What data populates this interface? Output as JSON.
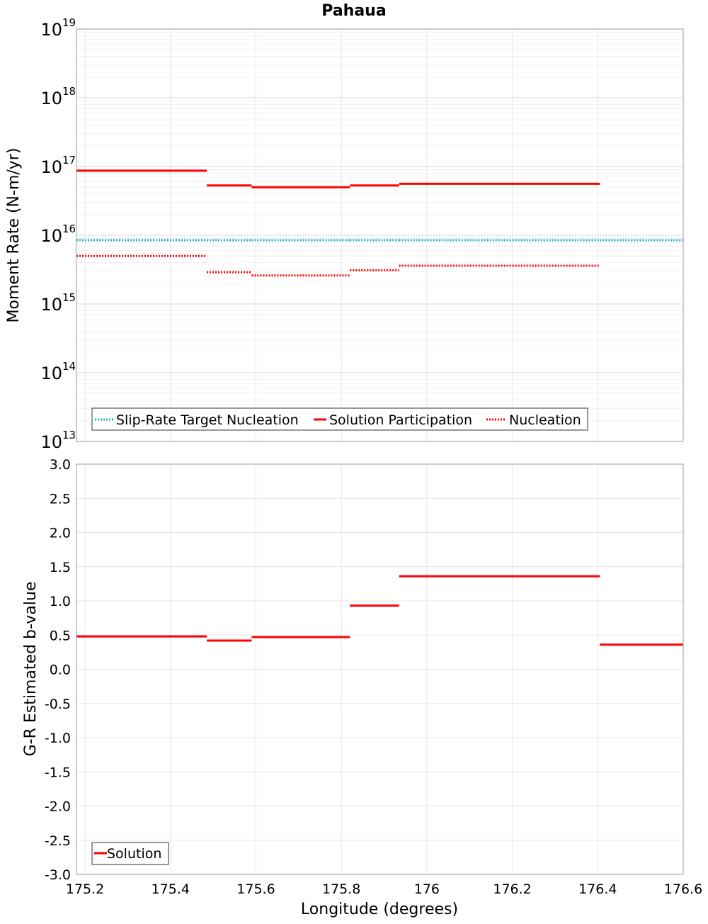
{
  "title": "Pahaua",
  "x_axis": {
    "label": "Longitude (degrees)",
    "range": [
      175.18,
      176.6
    ],
    "tick_labels": [
      "175.2",
      "175.4",
      "175.6",
      "175.8",
      "176",
      "176.2",
      "176.4",
      "176.6"
    ]
  },
  "colors": {
    "target": "#1bb5c4",
    "solution": "#ff0000",
    "grid": "#e6e6e6",
    "minor_grid": "#f0f0f0",
    "frame": "#999999"
  },
  "chart_data": [
    {
      "type": "line",
      "panel": "top",
      "ylabel": "Moment Rate (N-m/yr)",
      "y_scale": "log",
      "ylim": [
        10000000000000.0,
        1e+19
      ],
      "y_tick_labels": [
        {
          "base": "10",
          "exp": "13"
        },
        {
          "base": "10",
          "exp": "14"
        },
        {
          "base": "10",
          "exp": "15"
        },
        {
          "base": "10",
          "exp": "16"
        },
        {
          "base": "10",
          "exp": "17"
        },
        {
          "base": "10",
          "exp": "18"
        },
        {
          "base": "10",
          "exp": "19"
        }
      ],
      "legend_position": "bottom-left",
      "series": [
        {
          "name": "Slip-Rate Target Nucleation",
          "style": "dotted",
          "color": "#1bb5c4",
          "segments": [
            {
              "x": [
                175.18,
                175.485
              ],
              "y": 8500000000000000.0
            },
            {
              "x": [
                175.485,
                175.59
              ],
              "y": 8500000000000000.0
            },
            {
              "x": [
                175.59,
                175.82
              ],
              "y": 8500000000000000.0
            },
            {
              "x": [
                175.82,
                175.935
              ],
              "y": 8500000000000000.0
            },
            {
              "x": [
                175.935,
                176.405
              ],
              "y": 8500000000000000.0
            },
            {
              "x": [
                176.405,
                176.6
              ],
              "y": 8500000000000000.0
            }
          ]
        },
        {
          "name": "Solution Participation",
          "style": "solid",
          "color": "#ff0000",
          "segments": [
            {
              "x": [
                175.18,
                175.485
              ],
              "y": 8.7e+16
            },
            {
              "x": [
                175.485,
                175.59
              ],
              "y": 5.3e+16
            },
            {
              "x": [
                175.59,
                175.82
              ],
              "y": 5e+16
            },
            {
              "x": [
                175.82,
                175.935
              ],
              "y": 5.3e+16
            },
            {
              "x": [
                175.935,
                176.405
              ],
              "y": 5.6e+16
            }
          ]
        },
        {
          "name": "Nucleation",
          "style": "dotted",
          "color": "#ff0000",
          "segments": [
            {
              "x": [
                175.18,
                175.485
              ],
              "y": 5000000000000000.0
            },
            {
              "x": [
                175.485,
                175.59
              ],
              "y": 2900000000000000.0
            },
            {
              "x": [
                175.59,
                175.82
              ],
              "y": 2600000000000000.0
            },
            {
              "x": [
                175.82,
                175.935
              ],
              "y": 3100000000000000.0
            },
            {
              "x": [
                175.935,
                176.405
              ],
              "y": 3600000000000000.0
            }
          ]
        }
      ]
    },
    {
      "type": "line",
      "panel": "bottom",
      "ylabel": "G-R Estimated b-value",
      "y_scale": "linear",
      "ylim": [
        -3.0,
        3.0
      ],
      "y_tick_labels": [
        "3.0",
        "2.5",
        "2.0",
        "1.5",
        "1.0",
        "0.5",
        "0.0",
        "-0.5",
        "-1.0",
        "-1.5",
        "-2.0",
        "-2.5",
        "-3.0"
      ],
      "legend_position": "bottom-left",
      "series": [
        {
          "name": "Solution",
          "style": "solid",
          "color": "#ff0000",
          "segments": [
            {
              "x": [
                175.18,
                175.485
              ],
              "y": 0.48
            },
            {
              "x": [
                175.485,
                175.59
              ],
              "y": 0.42
            },
            {
              "x": [
                175.59,
                175.82
              ],
              "y": 0.47
            },
            {
              "x": [
                175.82,
                175.935
              ],
              "y": 0.93
            },
            {
              "x": [
                175.935,
                176.405
              ],
              "y": 1.36
            },
            {
              "x": [
                176.405,
                176.6
              ],
              "y": 0.36
            }
          ]
        }
      ]
    }
  ]
}
